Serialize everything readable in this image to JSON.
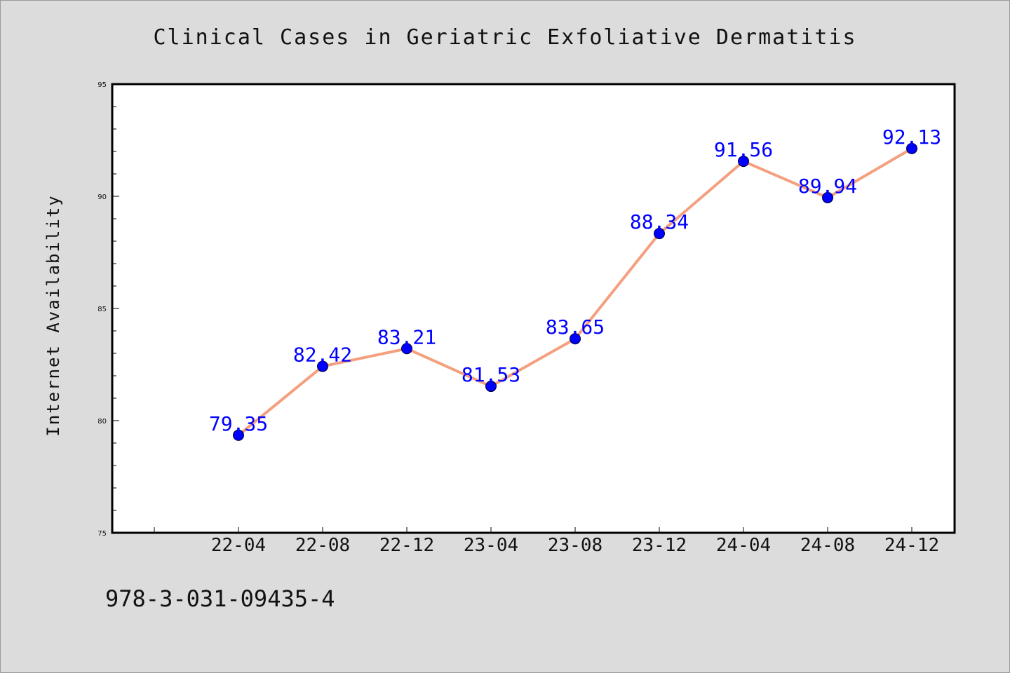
{
  "chart_data": {
    "type": "line",
    "title": "Clinical Cases in Geriatric Exfoliative Dermatitis",
    "xlabel": "",
    "ylabel": "Internet Availability",
    "categories": [
      "22-04",
      "22-08",
      "22-12",
      "23-04",
      "23-08",
      "23-12",
      "24-04",
      "24-08",
      "24-12"
    ],
    "series": [
      {
        "values": [
          79.35,
          82.42,
          83.21,
          81.53,
          83.65,
          88.34,
          91.56,
          89.94,
          92.13
        ],
        "labels": [
          "79.35",
          "82.42",
          "83.21",
          "81.53",
          "83.65",
          "88.34",
          "91.56",
          "89.94",
          "92.13"
        ],
        "line_color": "#f4a07f",
        "marker_color": "#0000ff"
      }
    ],
    "ylim": [
      75,
      95
    ],
    "yticks": [
      "75",
      "80",
      "85",
      "90",
      "95"
    ],
    "grid": false,
    "legend": "none"
  },
  "footer": {
    "isbn": "978-3-031-09435-4"
  }
}
